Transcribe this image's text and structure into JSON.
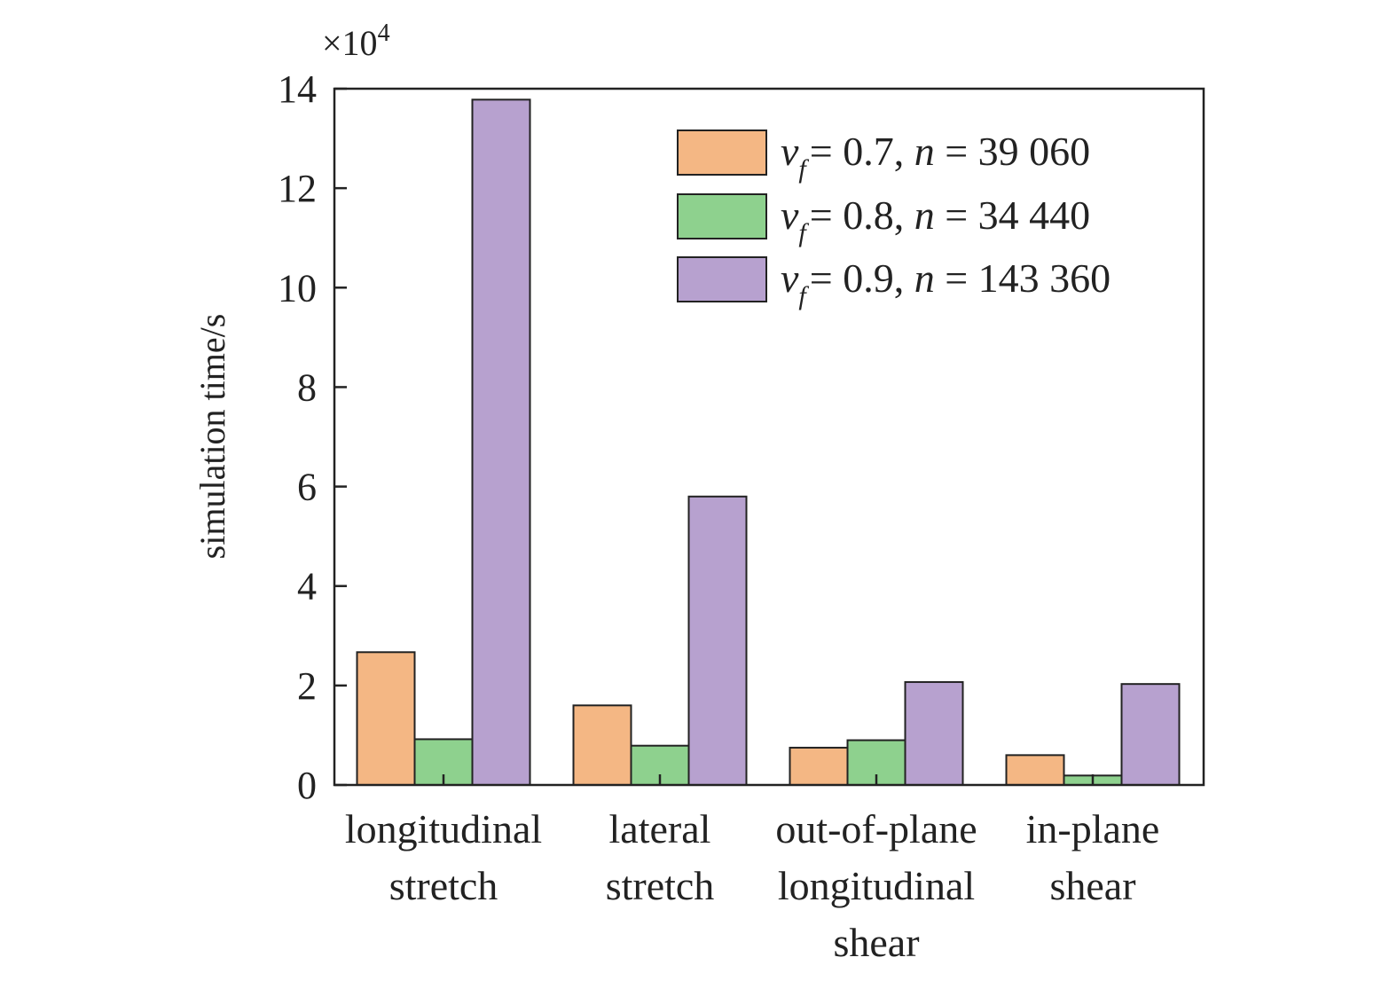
{
  "chart_data": {
    "type": "bar",
    "ylabel": "simulation time/s",
    "scale_note": {
      "prefix": "×10",
      "exponent": "4"
    },
    "ylim": [
      0,
      14
    ],
    "yticks": [
      0,
      2,
      4,
      6,
      8,
      10,
      12,
      14
    ],
    "categories": [
      [
        "longitudinal",
        "stretch"
      ],
      [
        "lateral",
        "stretch"
      ],
      [
        "out-of-plane",
        "longitudinal",
        "shear"
      ],
      [
        "in-plane",
        "shear"
      ]
    ],
    "series": [
      {
        "name": {
          "sym": "v",
          "sub": "f",
          "vf": "= 0.7, ",
          "n": "n",
          "rest": " = 39 060"
        },
        "color": "#f4b784",
        "values": [
          2.67,
          1.6,
          0.75,
          0.6
        ]
      },
      {
        "name": {
          "sym": "v",
          "sub": "f",
          "vf": "= 0.8, ",
          "n": "n",
          "rest": " = 34 440"
        },
        "color": "#8ed18e",
        "values": [
          0.92,
          0.79,
          0.9,
          0.19
        ]
      },
      {
        "name": {
          "sym": "v",
          "sub": "f",
          "vf": "= 0.9, ",
          "n": "n",
          "rest": " = 143 360"
        },
        "color": "#b7a1cf",
        "values": [
          13.78,
          5.8,
          2.07,
          2.03
        ]
      }
    ],
    "legend": "top-right",
    "grid": false
  }
}
